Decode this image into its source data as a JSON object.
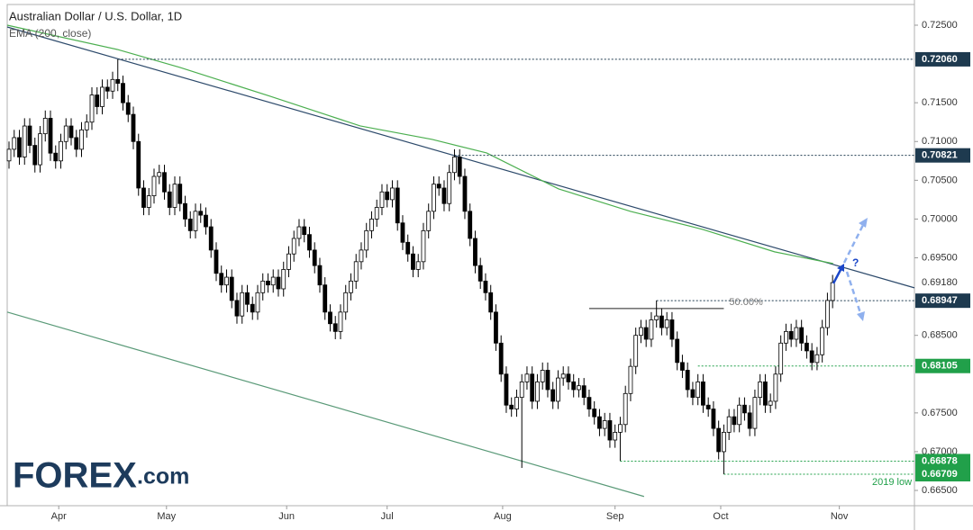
{
  "chart_data": {
    "type": "candlestick",
    "title": "Australian Dollar / U.S. Dollar, 1D",
    "up_color": "#ffffff",
    "down_color": "#000000",
    "wick_color": "#000000",
    "xlim": [
      -0.35,
      174.8
    ],
    "xticks": [
      {
        "value": 9.6,
        "label": "Apr"
      },
      {
        "value": 30.4,
        "label": "May"
      },
      {
        "value": 53.6,
        "label": "Jun"
      },
      {
        "value": 73,
        "label": "Jul"
      },
      {
        "value": 95.3,
        "label": "Aug"
      },
      {
        "value": 117,
        "label": "Sep"
      },
      {
        "value": 137.4,
        "label": "Oct"
      },
      {
        "value": 160.3,
        "label": "Nov"
      }
    ],
    "ylim": [
      0.66303,
      0.72767
    ],
    "yticks": [
      {
        "value": 0.725,
        "label": "0.72500"
      },
      {
        "value": 0.715,
        "label": "0.71500"
      },
      {
        "value": 0.71,
        "label": "0.71000"
      },
      {
        "value": 0.705,
        "label": "0.70500"
      },
      {
        "value": 0.7,
        "label": "0.70000"
      },
      {
        "value": 0.695,
        "label": "0.69500"
      },
      {
        "value": 0.685,
        "label": "0.68500"
      },
      {
        "value": 0.675,
        "label": "0.67500"
      },
      {
        "value": 0.67,
        "label": "0.67000"
      },
      {
        "value": 0.665,
        "label": "0.66500"
      }
    ],
    "last_price": {
      "value": 0.6918,
      "label": "0.69180"
    },
    "open": [
      0.7075,
      0.709,
      0.7105,
      0.708,
      0.712,
      0.7095,
      0.707,
      0.711,
      0.713,
      0.7085,
      0.7075,
      0.71,
      0.712,
      0.7105,
      0.709,
      0.7115,
      0.7125,
      0.716,
      0.7145,
      0.717,
      0.7165,
      0.718,
      0.7175,
      0.715,
      0.7135,
      0.71,
      0.704,
      0.7015,
      0.703,
      0.7055,
      0.706,
      0.7035,
      0.7015,
      0.7045,
      0.702,
      0.7,
      0.6985,
      0.701,
      0.7005,
      0.699,
      0.696,
      0.693,
      0.6915,
      0.6925,
      0.6895,
      0.6875,
      0.6905,
      0.689,
      0.688,
      0.6905,
      0.692,
      0.6915,
      0.6925,
      0.691,
      0.6935,
      0.6955,
      0.6975,
      0.699,
      0.698,
      0.696,
      0.694,
      0.6915,
      0.688,
      0.6865,
      0.6855,
      0.688,
      0.6905,
      0.692,
      0.6945,
      0.696,
      0.6985,
      0.7,
      0.7015,
      0.7035,
      0.7025,
      0.704,
      0.6995,
      0.697,
      0.6955,
      0.6935,
      0.6945,
      0.6985,
      0.701,
      0.7045,
      0.704,
      0.702,
      0.706,
      0.708,
      0.7055,
      0.701,
      0.6975,
      0.694,
      0.692,
      0.6905,
      0.688,
      0.684,
      0.68,
      0.676,
      0.6755,
      0.677,
      0.679,
      0.68,
      0.6765,
      0.679,
      0.6805,
      0.678,
      0.6765,
      0.6795,
      0.68,
      0.679,
      0.678,
      0.6785,
      0.677,
      0.6755,
      0.6745,
      0.673,
      0.674,
      0.6715,
      0.6725,
      0.6735,
      0.6775,
      0.681,
      0.685,
      0.686,
      0.6845,
      0.687,
      0.6875,
      0.686,
      0.687,
      0.6845,
      0.6815,
      0.6805,
      0.678,
      0.677,
      0.679,
      0.676,
      0.6755,
      0.673,
      0.67,
      0.6725,
      0.6745,
      0.6735,
      0.676,
      0.675,
      0.673,
      0.677,
      0.679,
      0.676,
      0.6765,
      0.68,
      0.684,
      0.6855,
      0.6845,
      0.686,
      0.684,
      0.683,
      0.6815,
      0.6825,
      0.686,
      0.6895
    ],
    "high": [
      0.71,
      0.7115,
      0.7115,
      0.713,
      0.713,
      0.7105,
      0.712,
      0.714,
      0.714,
      0.7095,
      0.711,
      0.713,
      0.713,
      0.7115,
      0.7125,
      0.7135,
      0.717,
      0.717,
      0.718,
      0.718,
      0.719,
      0.7206,
      0.7185,
      0.716,
      0.7145,
      0.711,
      0.705,
      0.704,
      0.7065,
      0.707,
      0.707,
      0.7045,
      0.7055,
      0.7055,
      0.703,
      0.701,
      0.702,
      0.702,
      0.7015,
      0.7,
      0.697,
      0.694,
      0.6935,
      0.6935,
      0.6905,
      0.6915,
      0.6915,
      0.69,
      0.6915,
      0.693,
      0.693,
      0.6935,
      0.6935,
      0.6945,
      0.6965,
      0.6985,
      0.7,
      0.7,
      0.699,
      0.697,
      0.695,
      0.6925,
      0.689,
      0.6875,
      0.689,
      0.6915,
      0.693,
      0.6955,
      0.697,
      0.6995,
      0.701,
      0.7025,
      0.7045,
      0.7045,
      0.705,
      0.705,
      0.7005,
      0.698,
      0.6965,
      0.6955,
      0.6995,
      0.702,
      0.7055,
      0.7055,
      0.705,
      0.707,
      0.709,
      0.709,
      0.7065,
      0.702,
      0.6985,
      0.695,
      0.693,
      0.6915,
      0.689,
      0.685,
      0.681,
      0.677,
      0.678,
      0.68,
      0.681,
      0.681,
      0.68,
      0.6815,
      0.6815,
      0.679,
      0.6805,
      0.681,
      0.681,
      0.68,
      0.6795,
      0.6795,
      0.678,
      0.6765,
      0.6755,
      0.675,
      0.675,
      0.6735,
      0.6745,
      0.6785,
      0.682,
      0.686,
      0.687,
      0.687,
      0.688,
      0.6895,
      0.6885,
      0.688,
      0.688,
      0.6855,
      0.6825,
      0.6815,
      0.679,
      0.68,
      0.68,
      0.677,
      0.6765,
      0.674,
      0.6735,
      0.6755,
      0.6755,
      0.677,
      0.677,
      0.676,
      0.678,
      0.68,
      0.68,
      0.6775,
      0.681,
      0.685,
      0.6865,
      0.6865,
      0.687,
      0.687,
      0.685,
      0.684,
      0.6835,
      0.687,
      0.6905,
      0.6928
    ],
    "low": [
      0.7065,
      0.708,
      0.707,
      0.707,
      0.7085,
      0.706,
      0.706,
      0.71,
      0.7075,
      0.7065,
      0.7065,
      0.709,
      0.7095,
      0.708,
      0.708,
      0.7105,
      0.7115,
      0.7135,
      0.7135,
      0.7155,
      0.7155,
      0.7165,
      0.714,
      0.7125,
      0.709,
      0.703,
      0.7005,
      0.7005,
      0.702,
      0.7045,
      0.7025,
      0.7005,
      0.7005,
      0.701,
      0.699,
      0.6975,
      0.6975,
      0.6995,
      0.698,
      0.695,
      0.692,
      0.6905,
      0.6905,
      0.6885,
      0.6865,
      0.6865,
      0.688,
      0.687,
      0.687,
      0.6895,
      0.6905,
      0.6905,
      0.69,
      0.69,
      0.6925,
      0.6945,
      0.6965,
      0.697,
      0.695,
      0.693,
      0.6905,
      0.687,
      0.6855,
      0.6845,
      0.6845,
      0.687,
      0.6895,
      0.691,
      0.6935,
      0.695,
      0.6975,
      0.699,
      0.7005,
      0.7015,
      0.7015,
      0.6985,
      0.696,
      0.6945,
      0.6925,
      0.6925,
      0.6935,
      0.6975,
      0.7,
      0.703,
      0.701,
      0.701,
      0.705,
      0.7045,
      0.7,
      0.6965,
      0.693,
      0.691,
      0.6895,
      0.687,
      0.683,
      0.679,
      0.675,
      0.6745,
      0.6745,
      0.6679,
      0.678,
      0.6755,
      0.6755,
      0.678,
      0.677,
      0.6755,
      0.6755,
      0.6785,
      0.678,
      0.677,
      0.677,
      0.676,
      0.6745,
      0.6735,
      0.672,
      0.672,
      0.6705,
      0.6705,
      0.6688,
      0.6725,
      0.6765,
      0.68,
      0.684,
      0.6835,
      0.6835,
      0.686,
      0.685,
      0.685,
      0.6835,
      0.6805,
      0.6795,
      0.677,
      0.676,
      0.676,
      0.675,
      0.6745,
      0.672,
      0.669,
      0.6671,
      0.6715,
      0.6725,
      0.6725,
      0.674,
      0.672,
      0.672,
      0.676,
      0.675,
      0.675,
      0.6755,
      0.679,
      0.683,
      0.6835,
      0.6835,
      0.683,
      0.682,
      0.6805,
      0.6805,
      0.6815,
      0.685,
      0.6885
    ],
    "close": [
      0.709,
      0.7105,
      0.708,
      0.712,
      0.7095,
      0.707,
      0.711,
      0.713,
      0.7085,
      0.7075,
      0.71,
      0.712,
      0.7105,
      0.709,
      0.7115,
      0.7125,
      0.716,
      0.7145,
      0.717,
      0.7165,
      0.718,
      0.7175,
      0.715,
      0.7135,
      0.71,
      0.704,
      0.7015,
      0.703,
      0.7055,
      0.706,
      0.7035,
      0.7015,
      0.7045,
      0.702,
      0.7,
      0.6985,
      0.701,
      0.7005,
      0.699,
      0.696,
      0.693,
      0.6915,
      0.6925,
      0.6895,
      0.6875,
      0.6905,
      0.689,
      0.688,
      0.6905,
      0.692,
      0.6915,
      0.6925,
      0.691,
      0.6935,
      0.6955,
      0.6975,
      0.699,
      0.698,
      0.696,
      0.694,
      0.6915,
      0.688,
      0.6865,
      0.6855,
      0.688,
      0.6905,
      0.692,
      0.6945,
      0.696,
      0.6985,
      0.7,
      0.7015,
      0.7035,
      0.7025,
      0.704,
      0.6995,
      0.697,
      0.6955,
      0.6935,
      0.6945,
      0.6985,
      0.701,
      0.7045,
      0.704,
      0.702,
      0.706,
      0.708,
      0.7055,
      0.701,
      0.6975,
      0.694,
      0.692,
      0.6905,
      0.688,
      0.684,
      0.68,
      0.676,
      0.6755,
      0.677,
      0.679,
      0.68,
      0.6765,
      0.679,
      0.6805,
      0.678,
      0.6765,
      0.6795,
      0.68,
      0.679,
      0.678,
      0.6785,
      0.677,
      0.6755,
      0.6745,
      0.673,
      0.674,
      0.6715,
      0.6725,
      0.6735,
      0.6775,
      0.681,
      0.685,
      0.686,
      0.6845,
      0.687,
      0.6875,
      0.686,
      0.687,
      0.6845,
      0.6815,
      0.6805,
      0.678,
      0.677,
      0.679,
      0.676,
      0.6755,
      0.673,
      0.67,
      0.6725,
      0.6745,
      0.6735,
      0.676,
      0.675,
      0.673,
      0.677,
      0.679,
      0.676,
      0.6765,
      0.68,
      0.684,
      0.6855,
      0.6845,
      0.686,
      0.684,
      0.683,
      0.6815,
      0.6825,
      0.686,
      0.6895,
      0.6918
    ],
    "ema": {
      "name": "EMA (200, close)",
      "color": "#4caf50",
      "x": [
        -0.35,
        20.9,
        33,
        50.4,
        67.8,
        81.7,
        92.2,
        106.1,
        120,
        133.9,
        147.8,
        159.1
      ],
      "values": [
        0.725,
        0.72187,
        0.71955,
        0.71584,
        0.71201,
        0.71027,
        0.70853,
        0.70389,
        0.70099,
        0.69867,
        0.69577,
        0.69426
      ]
    },
    "trendlines": [
      {
        "color": "#2d4a6b",
        "x": [
          -0.35,
          174.8
        ],
        "y": [
          0.72477,
          0.69113
        ]
      },
      {
        "color": "#5a9a78",
        "x": [
          -0.35,
          122.6
        ],
        "y": [
          0.688,
          0.66422
        ]
      }
    ],
    "levels": [
      {
        "value": 0.7206,
        "label": "0.72060",
        "from": 21,
        "color": "#1e3a4f"
      },
      {
        "value": 0.70821,
        "label": "0.70821",
        "from": 86,
        "color": "#1e3a4f"
      },
      {
        "value": 0.68947,
        "label": "0.68947",
        "from": 125,
        "color": "#1e3a4f"
      },
      {
        "value": 0.68105,
        "label": "0.68105",
        "from": 133,
        "color": "#21a04a"
      },
      {
        "value": 0.66878,
        "label": "0.66878",
        "from": 118,
        "color": "#21a04a"
      },
      {
        "value": 0.66709,
        "label": "0.66709",
        "from": 138,
        "color": "#21a04a"
      }
    ],
    "fib": {
      "value": 0.68846,
      "label": "50.00%",
      "x": [
        112,
        138
      ]
    },
    "annotations": {
      "low_note": "2019 low",
      "question": "?"
    },
    "logo": {
      "brand": "FOREX",
      "suffix": ".com"
    }
  }
}
